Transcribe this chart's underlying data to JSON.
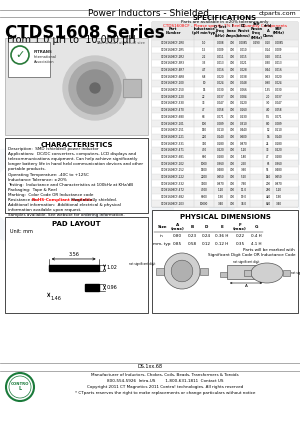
{
  "title_header": "Power Inductors - Shielded",
  "website": "ctparts.com",
  "series_title": "CTDS1608 Series",
  "series_subtitle": "From 1.0 μH to  10,000 μH",
  "bg_color": "#ffffff",
  "spec_title": "SPECIFICATIONS",
  "spec_note1": "Parts are available in ±20% tolerance only",
  "spec_note2": "CTDS1608CF - Please specify 1% Reel Quantity Components",
  "char_title": "CHARACTERISTICS",
  "char_text": [
    "Description:  SMD (shielded) power inductor",
    "Applications:  DC/DC converters, computers, LCD displays and",
    "telecommunications equipment. Can help achieve significantly",
    "longer battery life in hand held communication devices and other",
    "portable products.",
    "Operating Temperature: -40C to +125C",
    "Inductance Tolerance: ±20%",
    "Testing:  Inductance and Characteristics at 100kHz at KHz/dB",
    "Packaging:  Tape & Reel",
    "Marking:  Color Code OR Inductance code",
    "Resistance on:  RoHS-Compliant available. Magnetically shielded.",
    "Additional information:  Additional electrical & physical",
    "information available upon request.",
    "Samples available. See website for ordering information."
  ],
  "pad_title": "PAD LAYOUT",
  "pad_unit": "Unit: mm",
  "phys_title": "PHYSICAL DIMENSIONS",
  "footer_logo_color": "#1a7a3a",
  "footer_text_line1": "Manufacturer of Inductors, Chokes, Coils, Beads, Transformers & Toroids",
  "footer_text_line2": "800-554-5926  Intra-US        1-800-631-1811  Contact US",
  "footer_text_line3": "Copyright 2011 CT Magnetics 2011 Contra! technologies. All rights reserved",
  "footer_text_line4": "* CTparts reserves the right to make replacements or change particulars without notice",
  "ds_code": "DS.1xx.68",
  "spec_col_labels": [
    "Part\nNumber",
    "Inductance\n(pH min/typ)",
    "Q Test\nFreq\n(kHz)",
    "I\n(max\nAmps)",
    "DC\nResist\n(ohms)",
    "Self\nReson\nFreq\n(MHz)",
    "shld\nA\nOhms",
    "SRF\n(MHz)"
  ],
  "spec_col_widths": [
    42,
    20,
    13,
    10,
    13,
    13,
    10,
    12
  ],
  "spec_data": [
    [
      "CTDS1608CF-1R0_100",
      "1.0",
      "0.008",
      "700",
      "0.0085",
      "0.290",
      "0.10",
      "0.0085"
    ],
    [
      "CTDS1608CF-1R5_100",
      "1.5",
      "0.009",
      "700",
      "0.010",
      "",
      "0.14",
      "0.009"
    ],
    [
      "CTDS1608CF-2R2_100",
      "2.2",
      "0.011",
      "700",
      "0.015",
      "",
      "0.20",
      "0.011"
    ],
    [
      "CTDS1608CF-3R3_100",
      "3.3",
      "0.013",
      "700",
      "0.021",
      "",
      "0.30",
      "0.013"
    ],
    [
      "CTDS1608CF-4R7_100",
      "4.7",
      "0.016",
      "700",
      "0.028",
      "",
      "0.44",
      "0.016"
    ],
    [
      "CTDS1608CF-6R8_100",
      "6.8",
      "0.020",
      "700",
      "0.038",
      "",
      "0.63",
      "0.020"
    ],
    [
      "CTDS1608CF-100_100",
      "10",
      "0.024",
      "700",
      "0.048",
      "",
      "0.90",
      "0.024"
    ],
    [
      "CTDS1608CF-150_100",
      "15",
      "0.030",
      "700",
      "0.066",
      "",
      "1.35",
      "0.030"
    ],
    [
      "CTDS1608CF-220_100",
      "22",
      "0.037",
      "700",
      "0.084",
      "",
      "2.0",
      "0.037"
    ],
    [
      "CTDS1608CF-330_100",
      "33",
      "0.047",
      "700",
      "0.120",
      "",
      "3.0",
      "0.047"
    ],
    [
      "CTDS1608CF-470_100",
      "47",
      "0.058",
      "700",
      "0.160",
      "",
      "4.0",
      "0.058"
    ],
    [
      "CTDS1608CF-680_100",
      "68",
      "0.071",
      "700",
      "0.230",
      "",
      "5.5",
      "0.071"
    ],
    [
      "CTDS1608CF-101_100",
      "100",
      "0.089",
      "700",
      "0.310",
      "",
      "8.0",
      "0.089"
    ],
    [
      "CTDS1608CF-151_100",
      "150",
      "0.110",
      "700",
      "0.440",
      "",
      "12",
      "0.110"
    ],
    [
      "CTDS1608CF-221_100",
      "220",
      "0.140",
      "700",
      "0.600",
      "",
      "16",
      "0.140"
    ],
    [
      "CTDS1608CF-331_100",
      "330",
      "0.180",
      "700",
      "0.870",
      "",
      "24",
      "0.180"
    ],
    [
      "CTDS1608CF-471_100",
      "470",
      "0.220",
      "700",
      "1.20",
      "",
      "33",
      "0.220"
    ],
    [
      "CTDS1608CF-681_100",
      "680",
      "0.280",
      "700",
      "1.80",
      "",
      "47",
      "0.280"
    ],
    [
      "CTDS1608CF-102_100",
      "1000",
      "0.360",
      "700",
      "2.50",
      "",
      "65",
      "0.360"
    ],
    [
      "CTDS1608CF-152_100",
      "1500",
      "0.480",
      "700",
      "3.60",
      "",
      "95",
      "0.480"
    ],
    [
      "CTDS1608CF-222_100",
      "2200",
      "0.650",
      "700",
      "5.20",
      "",
      "140",
      "0.650"
    ],
    [
      "CTDS1608CF-332_100",
      "3300",
      "0.870",
      "700",
      "7.60",
      "",
      "200",
      "0.870"
    ],
    [
      "CTDS1608CF-472_100",
      "4700",
      "1.20",
      "700",
      "11.0",
      "",
      "280",
      "1.20"
    ],
    [
      "CTDS1608CF-682_100",
      "6800",
      "1.90",
      "700",
      "19.0",
      "",
      "420",
      "1.90"
    ],
    [
      "CTDS1608CF-103_100",
      "10000",
      "3.40",
      "700",
      "38.0",
      "",
      "820",
      "3.40"
    ]
  ],
  "phys_col_labels": [
    "Size",
    "A\n(max)",
    "B",
    "D",
    "E",
    "F\n(max)",
    "G"
  ],
  "phys_col_widths": [
    16,
    15,
    14,
    14,
    18,
    18,
    14
  ],
  "phys_rows": [
    [
      "in",
      "0.80",
      "0.23",
      "0.24",
      "0.36 H",
      "0.22",
      "0.4 H"
    ],
    [
      "mm, typ",
      "0.85",
      "0.58",
      "0.12",
      "0.12 H",
      "0.35",
      "4.1 H"
    ]
  ],
  "img_note": "Not shown at actual size",
  "phys_note": "Parts will be marked with\nSignificant Digit Code OR Inductance Code"
}
